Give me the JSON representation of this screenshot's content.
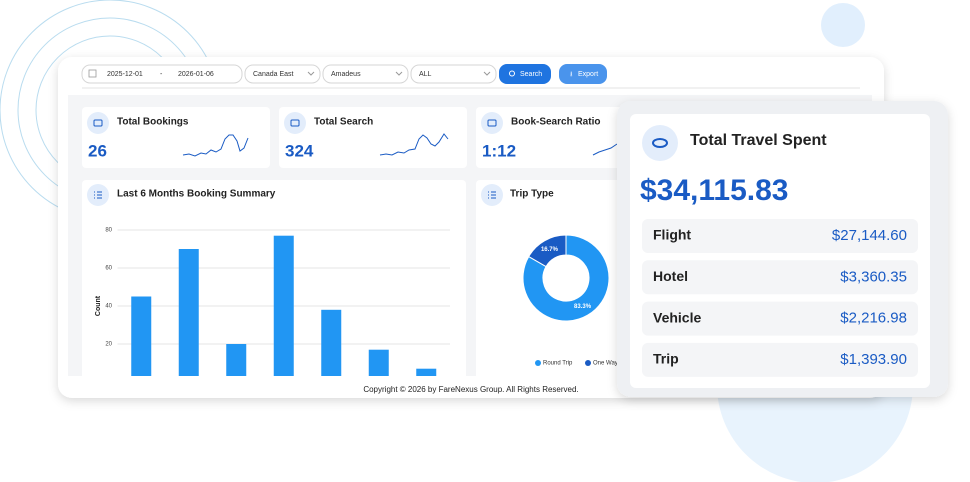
{
  "filters": {
    "start_date": "2025-12-01",
    "separator": "-",
    "end_date": "2026-01-06",
    "region": "Canada East",
    "provider": "Amadeus",
    "trip": "ALL"
  },
  "buttons": {
    "search": "Search",
    "export": "Export"
  },
  "stats": [
    {
      "label": "Total Bookings",
      "value": "26"
    },
    {
      "label": "Total Search",
      "value": "324"
    },
    {
      "label": "Book-Search Ratio",
      "value": "1:12"
    }
  ],
  "chart_data": [
    {
      "type": "bar",
      "title": "Last 6 Months Booking Summary",
      "y_label": "Count",
      "categories": [
        null,
        null,
        null,
        null,
        null,
        null,
        null
      ],
      "values": [
        45,
        70,
        20,
        77,
        38,
        17,
        7
      ],
      "color": "#2196f3",
      "ylim": [
        0,
        80
      ],
      "yticks": [
        20,
        40,
        60,
        80
      ],
      "grid": true
    },
    {
      "type": "pie",
      "title": "Trip Type",
      "donut": true,
      "categories": [
        "Round Trip",
        "One Way"
      ],
      "values": [
        83.3,
        16.7
      ],
      "value_labels": [
        "83.3%",
        "16.7%"
      ],
      "colors": [
        "#2196f3",
        "#1a5bc4"
      ]
    }
  ],
  "footer": "Copyright © 2026 by FareNexus Group. All Rights Reserved.",
  "travel_spent": {
    "title": "Total Travel Spent",
    "total": "$34,115.83",
    "items": [
      {
        "label": "Flight",
        "amount": "$27,144.60"
      },
      {
        "label": "Hotel",
        "amount": "$3,360.35"
      },
      {
        "label": "Vehicle",
        "amount": "$2,216.98"
      },
      {
        "label": "Trip",
        "amount": "$1,393.90"
      }
    ]
  }
}
